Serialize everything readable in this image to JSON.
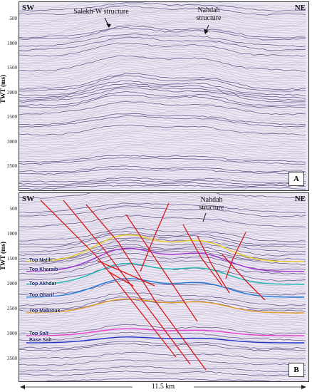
{
  "panels": {
    "a": {
      "letter": "A",
      "sw": "SW",
      "ne": "NE",
      "annotations": {
        "salakh": "Salakh-W structure",
        "nahdah": "Nahdah\nstructure"
      },
      "y_title": "TWT (ms)",
      "y_ticks": [
        "500",
        "1000",
        "1500",
        "2000",
        "2500",
        "3000",
        "3500"
      ]
    },
    "b": {
      "letter": "B",
      "sw": "SW",
      "ne": "NE",
      "annotations": {
        "nahdah": "Nahdah\nstructure"
      },
      "y_title": "TWT (ms)",
      "y_ticks": [
        "500",
        "1000",
        "1500",
        "2000",
        "2500",
        "3000",
        "3500"
      ],
      "horizons": [
        {
          "name": "Top Natih",
          "color": "#e8d020"
        },
        {
          "name": "Top Kharaib",
          "color": "#9b30d0"
        },
        {
          "name": "Top Akhdar",
          "color": "#19b8b0"
        },
        {
          "name": "Top Gharif",
          "color": "#1e7bd8"
        },
        {
          "name": "Top Mabrouk",
          "color": "#e39a2a"
        },
        {
          "name": "Top Salt",
          "color": "#e83fd2"
        },
        {
          "name": "Base Salt",
          "color": "#2030c8"
        }
      ],
      "fault_color": "#d81818"
    }
  },
  "scale": {
    "label": "11.5 km"
  }
}
